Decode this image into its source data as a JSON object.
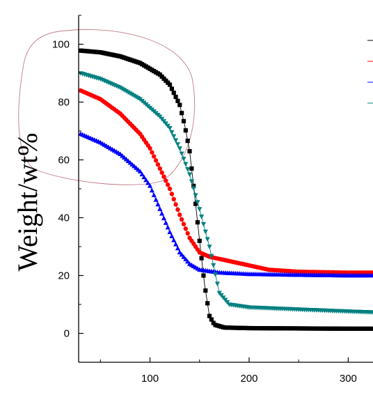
{
  "chart_data": {
    "type": "line",
    "title": "",
    "xlabel": "",
    "ylabel": "Weight/wt%",
    "xlim": [
      28,
      325
    ],
    "ylim": [
      -10,
      110
    ],
    "xticks": [
      100,
      200,
      300
    ],
    "yticks": [
      0,
      20,
      40,
      60,
      80,
      100
    ],
    "grid": false,
    "legend": "top-right",
    "series": [
      {
        "color": "#000000",
        "marker": "square",
        "points": [
          [
            30,
            97.8
          ],
          [
            50,
            97.2
          ],
          [
            70,
            95.8
          ],
          [
            90,
            93.5
          ],
          [
            110,
            89.5
          ],
          [
            120,
            86
          ],
          [
            130,
            79
          ],
          [
            135,
            72
          ],
          [
            140,
            63
          ],
          [
            145,
            48
          ],
          [
            150,
            32
          ],
          [
            155,
            17
          ],
          [
            160,
            6
          ],
          [
            165,
            3
          ],
          [
            175,
            2
          ],
          [
            200,
            1.8
          ],
          [
            250,
            1.7
          ],
          [
            300,
            1.6
          ],
          [
            325,
            1.6
          ]
        ]
      },
      {
        "color": "#ff0000",
        "marker": "circle",
        "points": [
          [
            30,
            84
          ],
          [
            50,
            81
          ],
          [
            70,
            76
          ],
          [
            90,
            69
          ],
          [
            100,
            64
          ],
          [
            110,
            57
          ],
          [
            120,
            50
          ],
          [
            130,
            41
          ],
          [
            140,
            33
          ],
          [
            150,
            28
          ],
          [
            160,
            26.5
          ],
          [
            180,
            25
          ],
          [
            200,
            23.5
          ],
          [
            220,
            22
          ],
          [
            250,
            21.3
          ],
          [
            300,
            21
          ],
          [
            325,
            21
          ]
        ]
      },
      {
        "color": "#0000ff",
        "marker": "triangle-up",
        "points": [
          [
            30,
            69
          ],
          [
            50,
            66
          ],
          [
            70,
            62
          ],
          [
            90,
            56
          ],
          [
            100,
            51
          ],
          [
            110,
            43
          ],
          [
            120,
            35
          ],
          [
            130,
            28
          ],
          [
            140,
            24
          ],
          [
            150,
            22
          ],
          [
            170,
            21
          ],
          [
            200,
            20.5
          ],
          [
            250,
            20.2
          ],
          [
            300,
            20
          ],
          [
            325,
            20
          ]
        ]
      },
      {
        "color": "#008080",
        "marker": "triangle-down",
        "points": [
          [
            30,
            90
          ],
          [
            50,
            88
          ],
          [
            70,
            85
          ],
          [
            90,
            81
          ],
          [
            110,
            75
          ],
          [
            120,
            71
          ],
          [
            130,
            64
          ],
          [
            140,
            55
          ],
          [
            150,
            43
          ],
          [
            160,
            30
          ],
          [
            165,
            22
          ],
          [
            170,
            14
          ],
          [
            180,
            10
          ],
          [
            200,
            9
          ],
          [
            250,
            8.3
          ],
          [
            300,
            7.6
          ],
          [
            325,
            7.3
          ]
        ]
      }
    ],
    "annotations": [
      {
        "type": "hand-drawn-ellipse",
        "color": "#b04a5a"
      }
    ]
  }
}
